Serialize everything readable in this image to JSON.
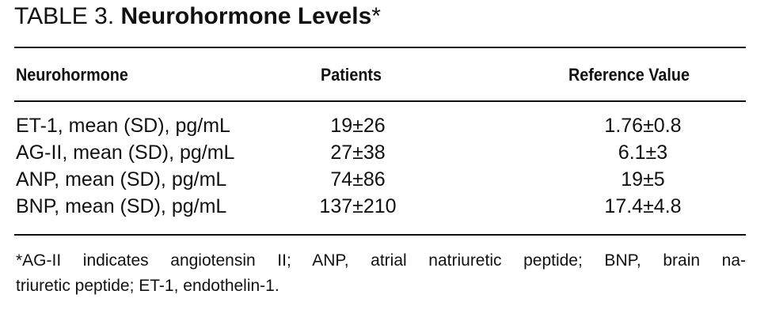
{
  "header": {
    "label": "TABLE 3.",
    "title": "Neurohormone Levels",
    "marker": "*"
  },
  "table": {
    "columns": [
      "Neurohormone",
      "Patients",
      "Reference Value"
    ],
    "rows": [
      [
        "ET-1, mean (SD), pg/mL",
        "19±26",
        "1.76±0.8"
      ],
      [
        "AG-II, mean (SD), pg/mL",
        "27±38",
        "6.1±3"
      ],
      [
        "ANP, mean (SD), pg/mL",
        "74±86",
        "19±5"
      ],
      [
        "BNP, mean (SD), pg/mL",
        "137±210",
        "17.4±4.8"
      ]
    ]
  },
  "footnote": [
    "*AG-II indicates angiotensin II; ANP, atrial natriuretic peptide; BNP, brain na-",
    "triuretic peptide; ET-1, endothelin-1."
  ]
}
